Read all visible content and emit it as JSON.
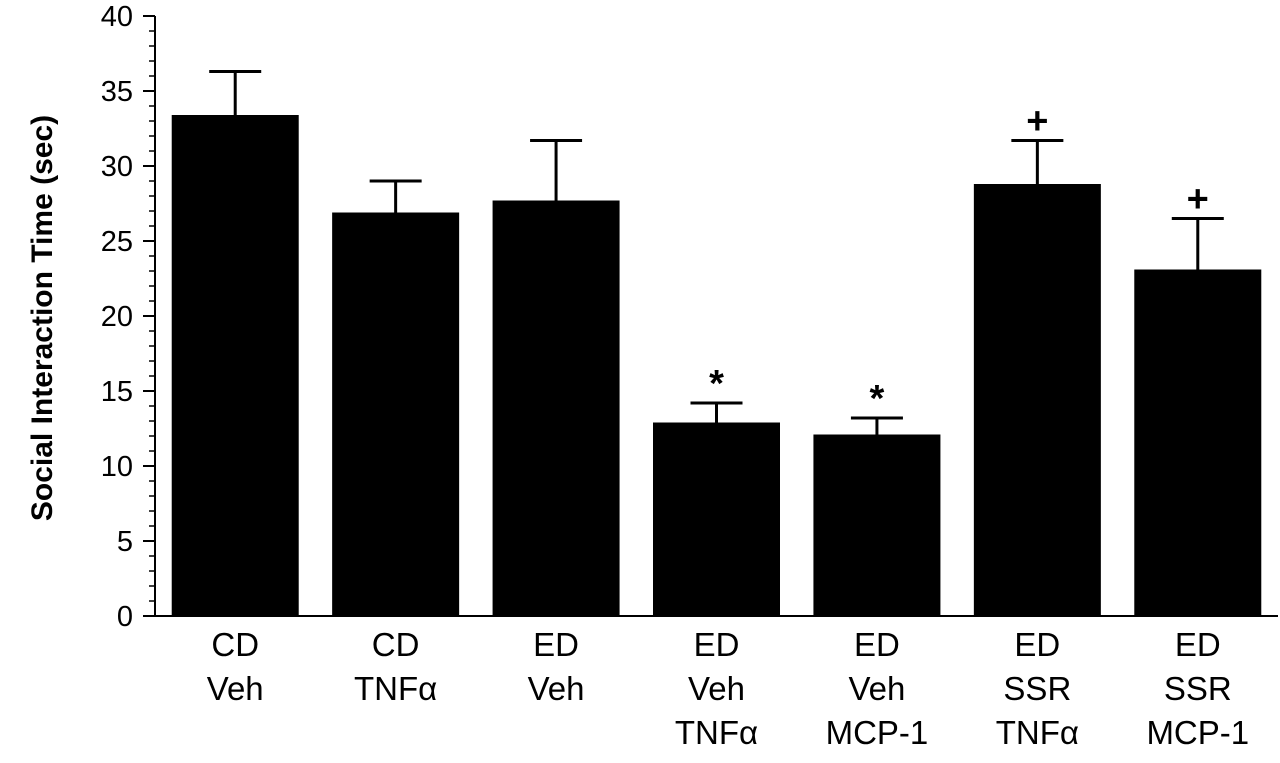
{
  "chart_data": {
    "type": "bar",
    "title": "",
    "xlabel": "",
    "ylabel": "Social Interaction Time (sec)",
    "ylim": [
      0,
      40
    ],
    "yticks": [
      0,
      5,
      10,
      15,
      20,
      25,
      30,
      35,
      40
    ],
    "grid": false,
    "bar_color": "#000000",
    "categories": [
      [
        "CD",
        "Veh"
      ],
      [
        "CD",
        "TNFα"
      ],
      [
        "ED",
        "Veh"
      ],
      [
        "ED",
        "Veh",
        "TNFα"
      ],
      [
        "ED",
        "Veh",
        "MCP-1"
      ],
      [
        "ED",
        "SSR",
        "TNFα"
      ],
      [
        "ED",
        "SSR",
        "MCP-1"
      ]
    ],
    "values": [
      33.4,
      26.9,
      27.7,
      12.9,
      12.1,
      28.8,
      23.1
    ],
    "error_upper": [
      2.9,
      2.1,
      4.0,
      1.3,
      1.1,
      2.9,
      3.4
    ],
    "significance": [
      "",
      "",
      "",
      "*",
      "*",
      "+",
      "+"
    ]
  }
}
